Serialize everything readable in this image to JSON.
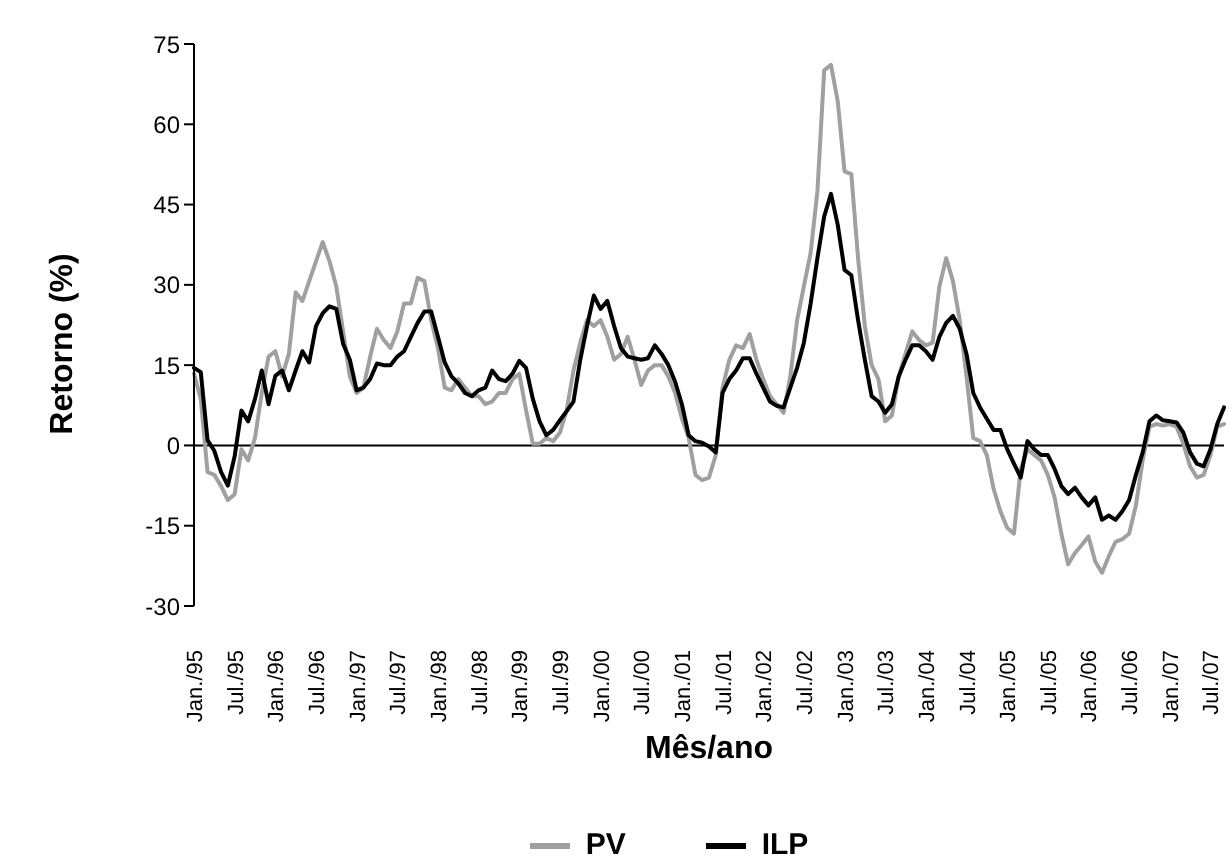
{
  "chart_data": {
    "type": "line",
    "xlabel": "Mês/ano",
    "ylabel": "Retorno (%)",
    "legend": "bottom",
    "ref_lines": [
      {
        "axis": "y",
        "value": 0,
        "color": "#000000"
      }
    ],
    "marker": "none",
    "line_style": "solid",
    "categories": [
      "Jan./95",
      null,
      null,
      null,
      null,
      null,
      "Jul./95",
      null,
      null,
      null,
      null,
      null,
      "Jan./96",
      null,
      null,
      null,
      null,
      null,
      "Jul./96",
      null,
      null,
      null,
      null,
      null,
      "Jan./97",
      null,
      null,
      null,
      null,
      null,
      "Jul./97",
      null,
      null,
      null,
      null,
      null,
      "Jan./98",
      null,
      null,
      null,
      null,
      null,
      "Jul./98",
      null,
      null,
      null,
      null,
      null,
      "Jan./99",
      null,
      null,
      null,
      null,
      null,
      "Jul./99",
      null,
      null,
      null,
      null,
      null,
      "Jan./00",
      null,
      null,
      null,
      null,
      null,
      "Jul./00",
      null,
      null,
      null,
      null,
      null,
      "Jan./01",
      null,
      null,
      null,
      null,
      null,
      "Jul./01",
      null,
      null,
      null,
      null,
      null,
      "Jan./02",
      null,
      null,
      null,
      null,
      null,
      "Jul./02",
      null,
      null,
      null,
      null,
      null,
      "Jan./03",
      null,
      null,
      null,
      null,
      null,
      "Jul./03",
      null,
      null,
      null,
      null,
      null,
      "Jan./04",
      null,
      null,
      null,
      null,
      null,
      "Jul./04",
      null,
      null,
      null,
      null,
      null,
      "Jan./05",
      null,
      null,
      null,
      null,
      null,
      "Jul./05",
      null,
      null,
      null,
      null,
      null,
      "Jan./06",
      null,
      null,
      null,
      null,
      null,
      "Jul./06",
      null,
      null,
      null,
      null,
      null,
      "Jan./07",
      null,
      null,
      null,
      null,
      null,
      "Jul./07",
      null,
      null
    ],
    "ylim": [
      -30,
      75
    ],
    "yticks": [
      -30,
      -15,
      0,
      15,
      30,
      45,
      60,
      75
    ],
    "series": [
      {
        "name": "PV",
        "color": "#a0a0a0",
        "values": [
          13.4,
          8.7,
          -5,
          -5.5,
          -7.6,
          -10.2,
          -9.1,
          -0.7,
          -2.8,
          1.4,
          9.8,
          16.6,
          17.6,
          12.9,
          17.1,
          28.6,
          27,
          30.7,
          34.4,
          38,
          34.4,
          29.7,
          21.3,
          12.9,
          9.8,
          10.8,
          16.6,
          21.8,
          19.7,
          18.2,
          21.3,
          26.5,
          26.5,
          31.3,
          30.7,
          23.4,
          18.2,
          10.8,
          10.3,
          12.4,
          10.8,
          9.2,
          9.2,
          7.7,
          8.2,
          9.8,
          9.8,
          12.4,
          13.4,
          6.6,
          0.3,
          0.3,
          1.4,
          0.8,
          2.4,
          6.6,
          14,
          19.2,
          23.4,
          22.3,
          23.4,
          20.3,
          16,
          17.1,
          20.3,
          16,
          11.3,
          14,
          15,
          15,
          12.9,
          9.8,
          5,
          1.4,
          -5.5,
          -6.5,
          -6,
          -1.8,
          10.8,
          16,
          18.7,
          18.2,
          20.8,
          16,
          12.4,
          9.2,
          7.7,
          6.1,
          12.9,
          23.4,
          29.7,
          36,
          47.5,
          70.1,
          71.1,
          64.3,
          51.2,
          50.7,
          35,
          22.3,
          15,
          12.4,
          4.5,
          5.6,
          12.9,
          17.1,
          21.3,
          19.7,
          18.7,
          19.2,
          29.7,
          35,
          30.7,
          23.4,
          12.9,
          1.4,
          0.8,
          -1.8,
          -8.1,
          -12.3,
          -15.4,
          -16.5,
          -4.4,
          -0.7,
          -1.8,
          -2.8,
          -5.5,
          -9.7,
          -16.5,
          -22.2,
          -20.1,
          -18.6,
          -17,
          -21.7,
          -23.8,
          -20.7,
          -18,
          -17.5,
          -16.5,
          -11.2,
          -2.8,
          3.5,
          4,
          3.7,
          4,
          3.5,
          0.3,
          -3.9,
          -6,
          -5.5,
          -1.8,
          3.5,
          4
        ]
      },
      {
        "name": "ILP",
        "color": "#000000",
        "values": [
          14.5,
          13.7,
          1,
          -1,
          -5,
          -7.5,
          -2,
          6.5,
          4.5,
          8.7,
          14,
          7.7,
          13,
          14,
          10.3,
          14,
          17.6,
          15.5,
          22.3,
          24.7,
          26,
          25.5,
          19,
          16,
          10.3,
          10.8,
          12.4,
          15.3,
          15,
          15,
          16.6,
          17.6,
          20.3,
          22.9,
          25,
          25,
          20.3,
          15.5,
          12.9,
          11.6,
          9.8,
          9.2,
          10.3,
          10.8,
          14,
          12.4,
          12,
          13.4,
          15.8,
          14.5,
          8.7,
          4.5,
          1.9,
          2.9,
          4.7,
          6.4,
          8.2,
          16,
          22.3,
          28,
          25.5,
          27,
          22.3,
          18.2,
          16.6,
          16.3,
          16,
          16.3,
          18.7,
          17.1,
          15,
          11.9,
          7.7,
          1.9,
          0.8,
          0.5,
          -0.2,
          -1.3,
          9.8,
          12.4,
          14,
          16.3,
          16.3,
          13.4,
          10.8,
          8.2,
          7.4,
          7.1,
          10.8,
          14.5,
          19.2,
          26.5,
          35,
          42.8,
          47,
          41.2,
          32.8,
          31.8,
          23.4,
          16,
          9.2,
          8.2,
          6.1,
          7.7,
          12.9,
          16,
          18.7,
          18.7,
          17.6,
          16,
          20.3,
          22.9,
          24.2,
          21.8,
          17.1,
          9.8,
          7.1,
          5,
          2.9,
          2.9,
          -0.7,
          -3.4,
          -6,
          0.8,
          -0.7,
          -1.8,
          -1.8,
          -4.4,
          -7.6,
          -9.1,
          -7.9,
          -9.7,
          -11.2,
          -9.7,
          -13.9,
          -13.1,
          -13.9,
          -12.3,
          -10.2,
          -5.5,
          -1.3,
          4.5,
          5.6,
          4.7,
          4.5,
          4.3,
          2.4,
          -1.3,
          -3.4,
          -3.9,
          -0.7,
          4,
          7.1
        ]
      }
    ]
  }
}
